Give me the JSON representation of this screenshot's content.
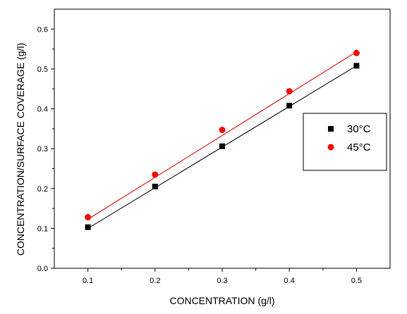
{
  "chart_data": {
    "type": "scatter",
    "xlabel": "CONCENTRATION (g/l)",
    "ylabel": "CONCENTRATION/SURFACE COVERAGE (g/l)",
    "xlim": [
      0.05,
      0.55
    ],
    "ylim": [
      0.0,
      0.65
    ],
    "x_ticks": [
      "0.1",
      "0.2",
      "0.3",
      "0.4",
      "0.5"
    ],
    "y_ticks": [
      "0.0",
      "0.1",
      "0.2",
      "0.3",
      "0.4",
      "0.5",
      "0.6"
    ],
    "grid": false,
    "legend_position": "right",
    "series": [
      {
        "name": "30°C",
        "marker": "square",
        "color": "#000000",
        "fit_color": "#000000",
        "x": [
          0.1,
          0.2,
          0.3,
          0.4,
          0.5
        ],
        "y": [
          0.103,
          0.205,
          0.306,
          0.408,
          0.508
        ],
        "fit": [
          [
            0.1,
            0.1
          ],
          [
            0.5,
            0.508
          ]
        ]
      },
      {
        "name": "45°C",
        "marker": "circle",
        "color": "#ff0000",
        "fit_color": "#d40000",
        "x": [
          0.1,
          0.2,
          0.3,
          0.4,
          0.5
        ],
        "y": [
          0.128,
          0.235,
          0.347,
          0.444,
          0.54
        ],
        "fit": [
          [
            0.1,
            0.123
          ],
          [
            0.5,
            0.543
          ]
        ]
      }
    ]
  }
}
